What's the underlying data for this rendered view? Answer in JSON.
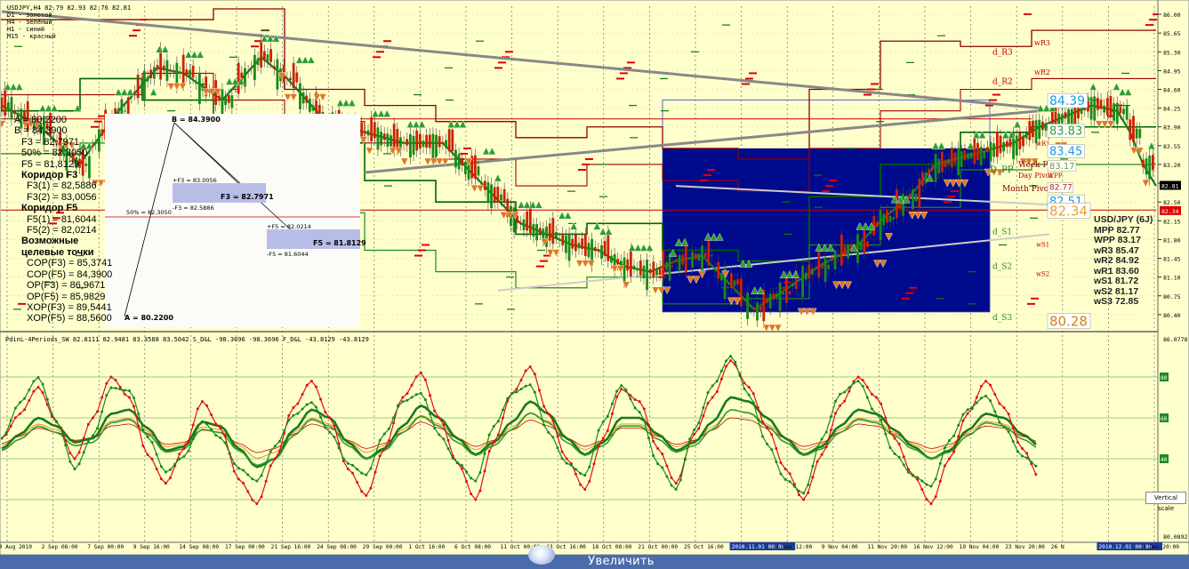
{
  "chart_data": [
    {
      "type": "line",
      "title": "USDJPY,H4 82.79 82.93 82.76 82.81",
      "legend": [
        "D1 - золотой",
        "H4 - зелёный",
        "H1 - синий",
        "M15 - красный"
      ],
      "ylim": [
        80.1,
        86.15
      ],
      "y_ticks": [
        "86.00",
        "85.65",
        "85.30",
        "84.95",
        "84.60",
        "84.25",
        "83.90",
        "83.55",
        "83.20",
        "82.85",
        "82.50",
        "82.15",
        "81.80",
        "81.45",
        "81.10",
        "80.75",
        "80.40"
      ],
      "current_price": "82.81",
      "current_price_red": "82.34",
      "x_ticks": [
        "30 Aug 2010",
        "2 Sep 08:00",
        "7 Sep 00:00",
        "9 Sep 16:00",
        "14 Sep 08:00",
        "17 Sep 00:00",
        "21 Sep 16:00",
        "24 Sep 08:00",
        "29 Sep 00:00",
        "1 Oct 16:00",
        "6 Oct 08:00",
        "11 Oct 00:00",
        "13 Oct 16:00",
        "18 Oct 08:00",
        "21 Oct 00:00",
        "25 Oct 16:00",
        "2010.11.01 00:00",
        "4 Nov 12:00",
        "9 Nov 04:00",
        "11 Nov 20:00",
        "16 Nov 12:00",
        "19 Nov 04:00",
        "23 Nov 20:00",
        "26 N",
        "2010.12.01 00:00",
        "3 Dec 20:00"
      ],
      "price_path": [
        [
          0,
          84.3
        ],
        [
          3,
          83.9
        ],
        [
          6,
          83.2
        ],
        [
          9,
          84.2
        ],
        [
          12,
          85.0
        ],
        [
          14,
          84.9
        ],
        [
          17,
          84.4
        ],
        [
          20,
          85.2
        ],
        [
          22,
          84.8
        ],
        [
          25,
          84.0
        ],
        [
          28,
          83.8
        ],
        [
          31,
          83.6
        ],
        [
          34,
          83.6
        ],
        [
          36,
          83.1
        ],
        [
          38,
          82.6
        ],
        [
          40,
          82.1
        ],
        [
          42,
          81.9
        ],
        [
          44,
          81.7
        ],
        [
          46,
          81.6
        ],
        [
          48,
          81.3
        ],
        [
          50,
          81.2
        ],
        [
          52,
          81.4
        ],
        [
          54,
          81.5
        ],
        [
          56,
          81.0
        ],
        [
          58,
          80.5
        ],
        [
          60,
          80.8
        ],
        [
          63,
          81.3
        ],
        [
          66,
          81.7
        ],
        [
          68,
          82.2
        ],
        [
          70,
          82.6
        ],
        [
          72,
          83.2
        ],
        [
          75,
          83.4
        ],
        [
          78,
          83.6
        ],
        [
          80,
          83.9
        ],
        [
          82,
          84.1
        ],
        [
          84,
          84.3
        ],
        [
          86,
          84.2
        ],
        [
          87,
          83.8
        ],
        [
          88,
          83.2
        ],
        [
          89,
          82.8
        ]
      ],
      "annotations": [
        "wR3",
        "wR2",
        "wR1",
        "wS1",
        "wS2",
        "d_R3",
        "d_R2",
        "d_R1",
        "d_S1",
        "d_S2",
        "d_S3",
        "D_PP",
        "Week Pivot",
        "Day Pivot",
        "Month Pivot",
        "WPP"
      ],
      "price_labels": [
        "84.39",
        "83.83",
        "83.45",
        "83.17",
        "82.77",
        "82.51",
        "82.34",
        "80.28"
      ],
      "fib_panel": [
        "A = 80,2200",
        "B = 84,3900",
        "F3 = 82,7971",
        "50% = 82,3050",
        "F5 = 81,8129",
        "Коридор F3",
        "F3(1) = 82,5886",
        "F3(2) = 83,0056",
        "Коридор F5",
        "F5(1) = 81,6044",
        "F5(2) = 82,0214",
        "Возможные",
        "целевые точки",
        "COP(F3) = 85,3741",
        "COP(F5) = 84,3900",
        "OP(F3) = 86,9671",
        "OP(F5) = 85,9829",
        "XOP(F3) = 89,5441",
        "XOP(F5) = 88,5600"
      ],
      "fib_drawing": {
        "a_label": "A = 80.2200",
        "b_label": "B = 84.3900",
        "mid_label": "50% = 82.3050",
        "f3_upper": "+F3 = 83.0056",
        "f3_lower": "-F3 = 82.5886",
        "f3_value": "F3 = 82.7971",
        "f5_upper": "+F5 = 82.0214",
        "f5_lower": "-F5 = 81.6044",
        "f5_value": "F5 = 81.8129"
      },
      "info_box": [
        "USD/JPY (6J)",
        "MPP 82.77",
        "WPP 83.17",
        "wR3 85.47",
        "wR2 84.92",
        "wR1 83.60",
        "wS1 81.72",
        "wS2 81.17",
        "wS3 72.85"
      ]
    },
    {
      "type": "line",
      "title": "PdinL-4Periods_SW 82.8111 82.9481 83.3588 83.5042  S_D&L -98.3696 -98.3696  F_D&L -43.8129 -43.8129",
      "ylim": [
        0,
        100
      ],
      "y_ticks_top": "86.0778",
      "y_ticks_bottom": "80.0892",
      "level_labels": [
        "80",
        "60",
        "40",
        "20"
      ],
      "fast_red": [
        50,
        62,
        75,
        58,
        40,
        60,
        80,
        70,
        42,
        28,
        45,
        68,
        55,
        30,
        18,
        40,
        65,
        78,
        60,
        35,
        22,
        45,
        70,
        82,
        60,
        38,
        20,
        48,
        72,
        85,
        62,
        40,
        25,
        50,
        74,
        68,
        45,
        28,
        52,
        70,
        88,
        75,
        55,
        35,
        20,
        42,
        66,
        80,
        70,
        50,
        32,
        18,
        40,
        62,
        78,
        65,
        45,
        30
      ],
      "slow_green": [
        45,
        52,
        60,
        56,
        48,
        50,
        62,
        64,
        55,
        44,
        46,
        58,
        56,
        45,
        36,
        40,
        54,
        64,
        60,
        48,
        40,
        45,
        56,
        66,
        60,
        50,
        42,
        48,
        58,
        68,
        62,
        50,
        42,
        48,
        60,
        60,
        52,
        44,
        48,
        58,
        70,
        68,
        60,
        50,
        42,
        46,
        56,
        64,
        62,
        54,
        46,
        40,
        44,
        54,
        62,
        60,
        52,
        46
      ],
      "vertical_scale_label": "Vertical scale"
    }
  ],
  "bottom_bar": {
    "label": "Увеличить"
  }
}
